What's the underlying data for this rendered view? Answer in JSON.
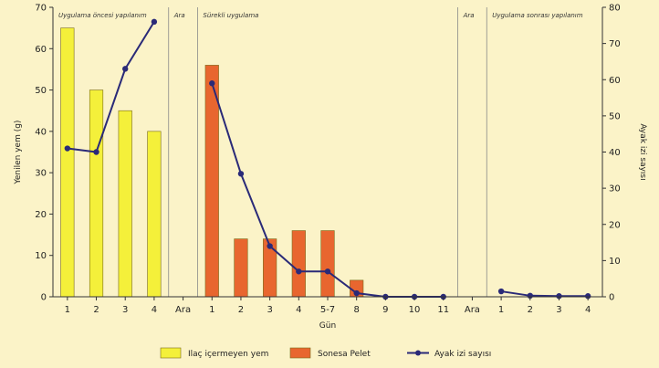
{
  "chart_data": {
    "type": "bar",
    "categories": [
      "1",
      "2",
      "3",
      "4",
      "Ara",
      "1",
      "2",
      "3",
      "4",
      "5-7",
      "8",
      "9",
      "10",
      "11",
      "Ara",
      "1",
      "2",
      "3",
      "4"
    ],
    "xlabel": "Gün",
    "ylabel": "Yenilen yem (g)",
    "ylabel_right": "Ayak izi sayısı",
    "ylim": [
      0,
      70
    ],
    "ylim_right": [
      0,
      80
    ],
    "yticks": [
      0,
      10,
      20,
      30,
      40,
      50,
      60,
      70
    ],
    "yticks_right": [
      0,
      10,
      20,
      30,
      40,
      50,
      60,
      70,
      80
    ],
    "phases": [
      {
        "label": "Uygulama öncesi yapılanım",
        "start": 0,
        "end": 3
      },
      {
        "label": "Ara",
        "start": 4,
        "end": 4
      },
      {
        "label": "Sürekli uygulama",
        "start": 5,
        "end": 13
      },
      {
        "label": "Ara",
        "start": 14,
        "end": 14
      },
      {
        "label": "Uygulama sonrası yapılanım",
        "start": 15,
        "end": 18
      }
    ],
    "series": [
      {
        "name": "Ilaç içermeyen yem",
        "kind": "bar",
        "axis": "left",
        "color": "#f4f03a",
        "values": [
          65,
          50,
          45,
          40,
          null,
          null,
          null,
          null,
          null,
          null,
          null,
          null,
          null,
          null,
          null,
          null,
          null,
          null,
          null
        ]
      },
      {
        "name": "Sonesa Pelet",
        "kind": "bar",
        "axis": "left",
        "color": "#e8662f",
        "values": [
          null,
          null,
          null,
          null,
          null,
          56,
          14,
          14,
          16,
          16,
          4,
          null,
          null,
          null,
          null,
          null,
          null,
          null,
          null
        ]
      },
      {
        "name": "Ayak izi sayısı",
        "kind": "line",
        "axis": "right",
        "color": "#2a2a78",
        "values": [
          41,
          40,
          63,
          76,
          null,
          59,
          34,
          14,
          7,
          7,
          1,
          0,
          0,
          0,
          null,
          1.5,
          0.3,
          0.2,
          0.2
        ]
      }
    ],
    "legend_position": "bottom",
    "grid": false
  }
}
